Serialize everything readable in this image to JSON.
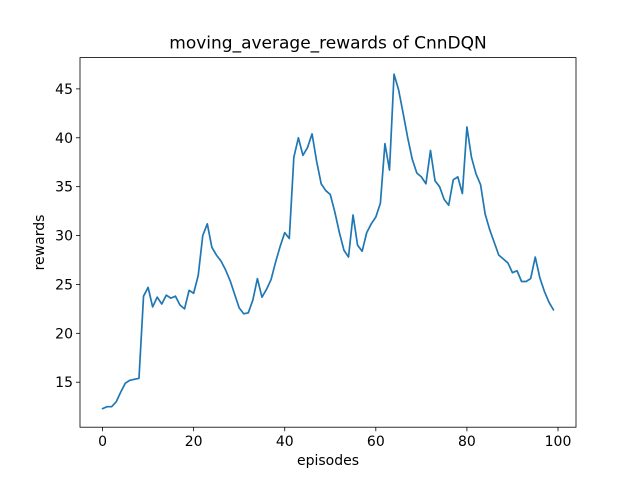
{
  "figure": {
    "title": "moving_average_rewards of CnnDQN",
    "xlabel": "episodes",
    "ylabel": "rewards"
  },
  "chart_data": {
    "type": "line",
    "title": "moving_average_rewards of CnnDQN",
    "xlabel": "episodes",
    "ylabel": "rewards",
    "grid": false,
    "legend": null,
    "xlim": [
      -4.95,
      103.95
    ],
    "ylim": [
      10.4,
      48.2
    ],
    "xticks": [
      0,
      20,
      40,
      60,
      80,
      100
    ],
    "yticks": [
      15,
      20,
      25,
      30,
      35,
      40,
      45
    ],
    "line_color": "#1f77b4",
    "series": [
      {
        "name": "moving_average_rewards",
        "color": "#1f77b4",
        "x": [
          0,
          1,
          2,
          3,
          4,
          5,
          6,
          7,
          8,
          9,
          10,
          11,
          12,
          13,
          14,
          15,
          16,
          17,
          18,
          19,
          20,
          21,
          22,
          23,
          24,
          25,
          26,
          27,
          28,
          29,
          30,
          31,
          32,
          33,
          34,
          35,
          36,
          37,
          38,
          39,
          40,
          41,
          42,
          43,
          44,
          45,
          46,
          47,
          48,
          49,
          50,
          51,
          52,
          53,
          54,
          55,
          56,
          57,
          58,
          59,
          60,
          61,
          62,
          63,
          64,
          65,
          66,
          67,
          68,
          69,
          70,
          71,
          72,
          73,
          74,
          75,
          76,
          77,
          78,
          79,
          80,
          81,
          82,
          83,
          84,
          85,
          86,
          87,
          88,
          89,
          90,
          91,
          92,
          93,
          94,
          95,
          96,
          97,
          98,
          99
        ],
        "values": [
          12.3,
          12.5,
          12.5,
          13.0,
          14.0,
          14.9,
          15.2,
          15.3,
          15.4,
          23.8,
          24.7,
          22.7,
          23.7,
          23.0,
          23.9,
          23.6,
          23.8,
          22.9,
          22.5,
          24.4,
          24.1,
          25.9,
          30.0,
          31.2,
          28.8,
          28.0,
          27.4,
          26.5,
          25.4,
          24.0,
          22.6,
          22.0,
          22.1,
          23.4,
          25.6,
          23.7,
          24.5,
          25.5,
          27.3,
          28.9,
          30.3,
          29.7,
          38.0,
          40.0,
          38.2,
          39.0,
          40.4,
          37.6,
          35.3,
          34.6,
          34.2,
          32.4,
          30.3,
          28.5,
          27.8,
          32.1,
          29.0,
          28.4,
          30.3,
          31.2,
          31.9,
          33.3,
          39.4,
          36.7,
          46.5,
          44.9,
          42.5,
          40.0,
          37.8,
          36.4,
          36.0,
          35.3,
          38.7,
          35.6,
          35.0,
          33.7,
          33.1,
          35.7,
          36.0,
          34.3,
          41.1,
          38.0,
          36.3,
          35.2,
          32.2,
          30.6,
          29.3,
          28.0,
          27.6,
          27.2,
          26.2,
          26.4,
          25.3,
          25.3,
          25.6,
          27.8,
          25.7,
          24.3,
          23.2,
          22.4
        ]
      }
    ]
  }
}
